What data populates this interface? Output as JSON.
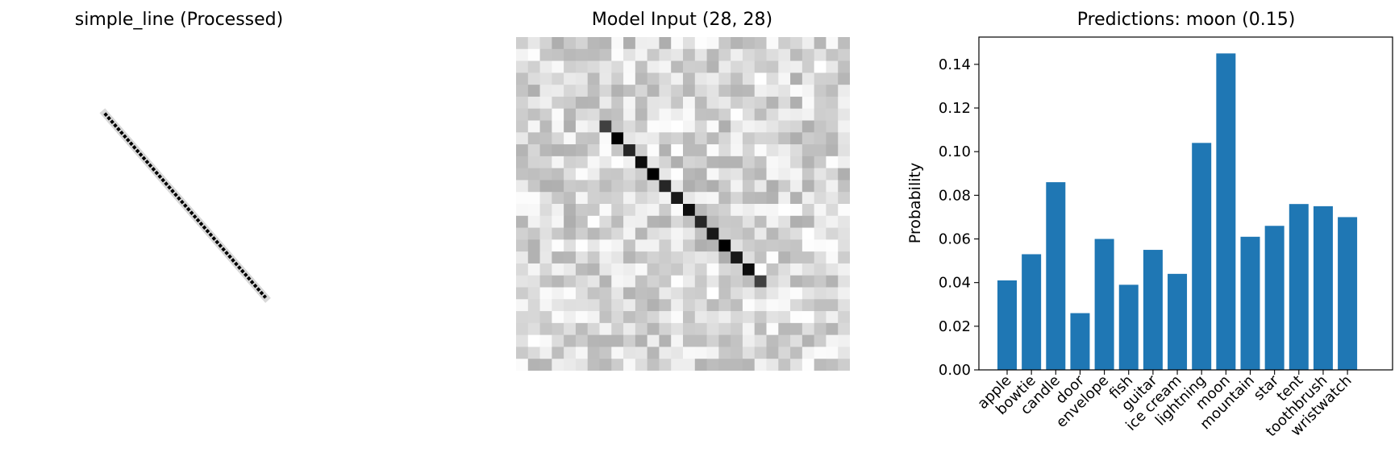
{
  "panels": {
    "processed": {
      "title": "simple_line (Processed)"
    },
    "model_input": {
      "title": "Model Input (28, 28)"
    },
    "predictions": {
      "title": "Predictions: moon (0.15)"
    }
  },
  "colors": {
    "bar": "#1f77b4",
    "ink": "#000000",
    "background": "#ffffff"
  },
  "chart_data": [
    {
      "type": "heatmap",
      "title": "simple_line (Processed)",
      "colormap": "gray_r",
      "description_values": "thin diagonal dark line from upper-left to lower-right on white background",
      "line": {
        "from": [
          0.26,
          0.23
        ],
        "to": [
          0.78,
          0.78
        ]
      }
    },
    {
      "type": "heatmap",
      "title": "Model Input (28, 28)",
      "shape": [
        28,
        28
      ],
      "colormap": "gray_r",
      "diagonal": {
        "start_col": 7,
        "end_col": 20,
        "intensities": [
          0.75,
          1.0,
          0.85,
          0.95,
          1.0,
          0.85,
          0.9,
          0.95,
          0.85,
          0.9,
          1.0,
          0.9,
          0.95,
          0.75
        ]
      },
      "noise_range": [
        0.0,
        0.32
      ]
    },
    {
      "type": "bar",
      "title": "Predictions: moon (0.15)",
      "ylabel": "Probability",
      "categories": [
        "apple",
        "bowtie",
        "candle",
        "door",
        "envelope",
        "fish",
        "guitar",
        "ice cream",
        "lightning",
        "moon",
        "mountain",
        "star",
        "tent",
        "toothbrush",
        "wristwatch"
      ],
      "values": [
        0.041,
        0.053,
        0.086,
        0.026,
        0.06,
        0.039,
        0.055,
        0.044,
        0.104,
        0.145,
        0.061,
        0.066,
        0.076,
        0.075,
        0.07
      ],
      "ylim": [
        0,
        0.1525
      ],
      "yticks": [
        0.0,
        0.02,
        0.04,
        0.06,
        0.08,
        0.1,
        0.12,
        0.14
      ],
      "ytick_labels": [
        "0.00",
        "0.02",
        "0.04",
        "0.06",
        "0.08",
        "0.10",
        "0.12",
        "0.14"
      ],
      "grid": false,
      "xtick_rotation": -45
    }
  ]
}
